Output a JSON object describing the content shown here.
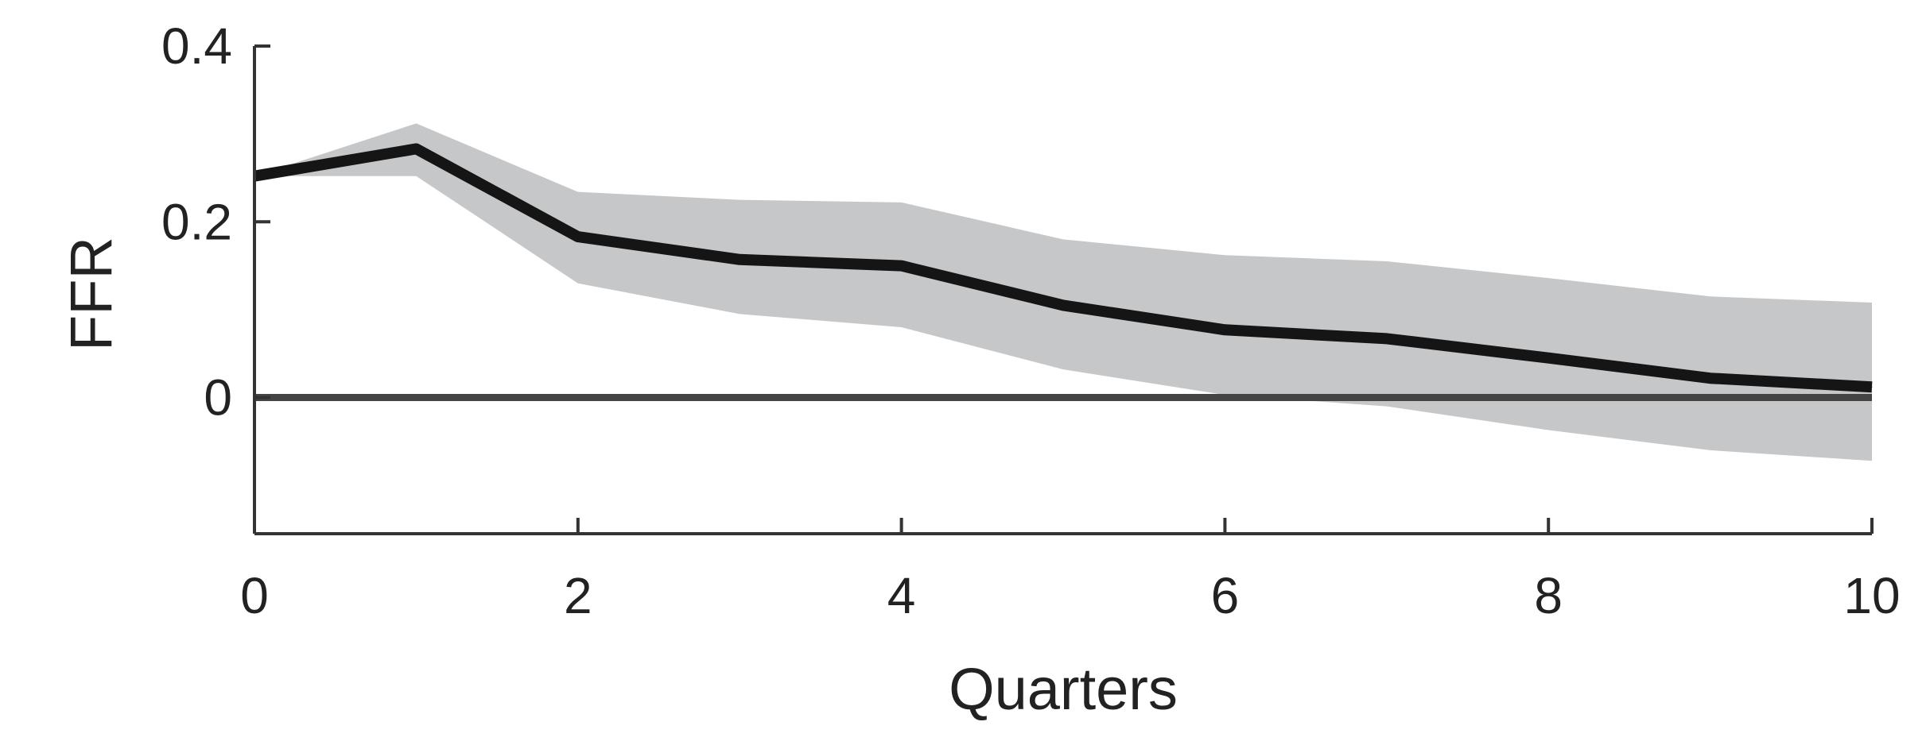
{
  "chart_data": {
    "type": "line",
    "title": "",
    "xlabel": "Quarters",
    "ylabel": "FFR",
    "xlim": [
      0,
      10
    ],
    "ylim": [
      -0.155,
      0.4
    ],
    "x_ticks": [
      0,
      2,
      4,
      6,
      8,
      10
    ],
    "x_tick_labels": [
      "0",
      "2",
      "4",
      "6",
      "8",
      "10"
    ],
    "y_ticks": [
      0,
      0.2,
      0.4
    ],
    "y_tick_labels": [
      "0",
      "0.2",
      "0.4"
    ],
    "grid": false,
    "legend": "none",
    "x": [
      0,
      1,
      2,
      3,
      4,
      5,
      6,
      7,
      8,
      9,
      10
    ],
    "series": [
      {
        "values": [
          0.252,
          0.283,
          0.183,
          0.157,
          0.15,
          0.105,
          0.077,
          0.067,
          0.045,
          0.022,
          0.012
        ]
      }
    ],
    "band": {
      "upper": [
        0.252,
        0.312,
        0.234,
        0.225,
        0.222,
        0.18,
        0.162,
        0.155,
        0.136,
        0.115,
        0.108
      ],
      "lower": [
        0.252,
        0.252,
        0.13,
        0.095,
        0.08,
        0.032,
        0.003,
        -0.01,
        -0.037,
        -0.06,
        -0.072
      ]
    },
    "reference_line": 0,
    "colors": {
      "line": "#151515",
      "band": "#c6c7c9",
      "zero_line": "#444444",
      "axis": "#333333"
    }
  }
}
